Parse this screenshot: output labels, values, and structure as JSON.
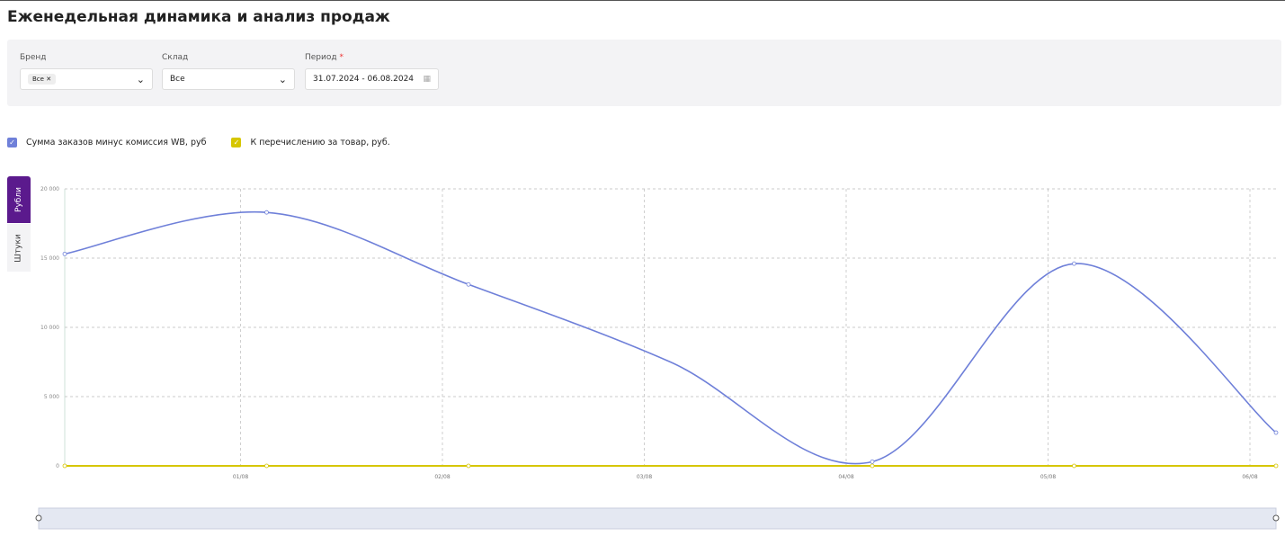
{
  "header": {
    "title": "Еженедельная динамика и анализ продаж"
  },
  "filters": {
    "brand": {
      "label": "Бренд",
      "chip": "Все"
    },
    "warehouse": {
      "label": "Склад",
      "value": "Все"
    },
    "period": {
      "label": "Период",
      "required": "*",
      "value": "31.07.2024 - 06.08.2024"
    }
  },
  "tabs": [
    "Рубли",
    "Штуки"
  ],
  "chart_data": {
    "type": "line",
    "categories": [
      null,
      "01/08",
      "02/08",
      "03/08",
      "04/08",
      "05/08",
      "06/08"
    ],
    "series": [
      {
        "name": "Сумма заказов минус комиссия WB, руб",
        "color": "#6f80d9",
        "values": [
          15300,
          18300,
          13100,
          7500,
          300,
          14600,
          2400
        ]
      },
      {
        "name": "К перечислению за товар, руб.",
        "color": "#d6c600",
        "values": [
          0,
          0,
          0,
          0,
          0,
          0,
          0
        ]
      }
    ],
    "ylim": [
      0,
      20000
    ],
    "yticks": [
      {
        "value": 0,
        "label": "0"
      },
      {
        "value": 5000,
        "label": "5 000"
      },
      {
        "value": 10000,
        "label": "10 000"
      },
      {
        "value": 15000,
        "label": "15 000"
      },
      {
        "value": 20000,
        "label": "20 000"
      }
    ],
    "grid": true
  }
}
